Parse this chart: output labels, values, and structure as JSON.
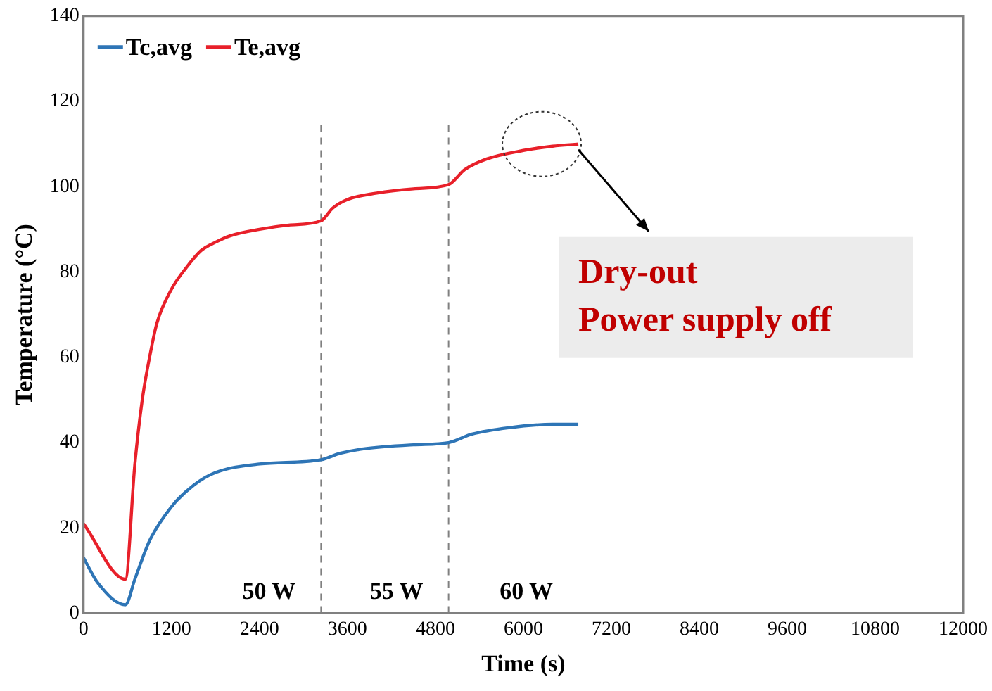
{
  "chart_data": {
    "type": "line",
    "xlabel": "Time (s)",
    "ylabel": "Temperature (°C)",
    "xlim": [
      0,
      12000
    ],
    "xticks": [
      0,
      1200,
      2400,
      3600,
      4800,
      6000,
      7200,
      8400,
      9600,
      10800,
      12000
    ],
    "ylim": [
      0,
      140
    ],
    "yticks": [
      0,
      20,
      40,
      60,
      80,
      100,
      120,
      140
    ],
    "grid": false,
    "legend": "top left",
    "marker": "none",
    "line_style": "solid",
    "series": [
      {
        "name": "Tc,avg",
        "color": "#2e75b6",
        "x": [
          0,
          200,
          570,
          700,
          900,
          1200,
          1500,
          1800,
          2400,
          3240,
          3500,
          3800,
          4500,
          4980,
          5300,
          5800,
          6400,
          6750
        ],
        "values": [
          13,
          7,
          2,
          8,
          17,
          25,
          30,
          33,
          35,
          36,
          37.5,
          38.5,
          39.5,
          40,
          42,
          43.5,
          44.3,
          44.3
        ]
      },
      {
        "name": "Te,avg",
        "color": "#e8202a",
        "x": [
          0,
          570,
          700,
          800,
          900,
          1000,
          1200,
          1400,
          1600,
          1800,
          2000,
          2400,
          2800,
          3240,
          3400,
          3600,
          4000,
          4500,
          4980,
          5200,
          5500,
          6000,
          6400,
          6750
        ],
        "values": [
          21,
          8,
          35,
          50,
          60,
          68,
          76,
          81,
          85,
          87,
          88.5,
          90,
          91,
          92,
          95,
          97,
          98.5,
          99.5,
          100.5,
          104,
          106.5,
          108.5,
          109.5,
          110
        ]
      }
    ],
    "ref_lines": [
      {
        "axis": "x",
        "value": 3240,
        "color": "#808080",
        "line_style": "dashed"
      },
      {
        "axis": "x",
        "value": 4980,
        "color": "#808080",
        "line_style": "dashed"
      }
    ],
    "annotations": [
      "50 W",
      "55 W",
      "60 W",
      {
        "text": "Dry-out\nPower supply off",
        "x": 6750,
        "y": 110
      }
    ]
  }
}
